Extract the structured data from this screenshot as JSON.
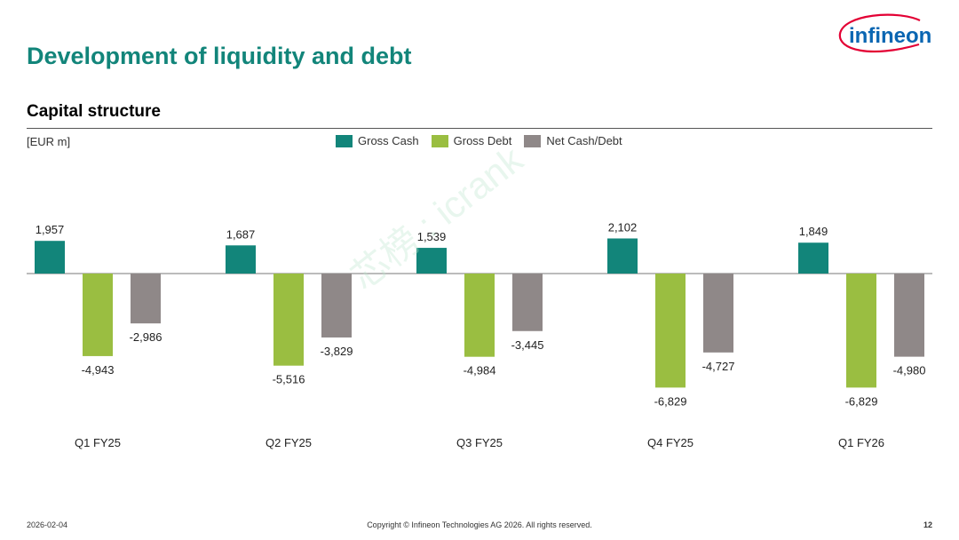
{
  "header": {
    "title": "Development of liquidity and debt",
    "logo_text": "infineon"
  },
  "section": {
    "subtitle": "Capital structure",
    "unit": "[EUR m]"
  },
  "watermark": "芯榜 : icrank",
  "colors": {
    "title": "#12857a",
    "gross_cash": "#12857a",
    "gross_debt": "#9abe41",
    "net_cash_debt": "#8f8888",
    "logo_blue": "#0a66b2",
    "logo_red": "#e30034"
  },
  "chart_data": {
    "type": "bar",
    "categories": [
      "Q1 FY25",
      "Q2 FY25",
      "Q3 FY25",
      "Q4 FY25",
      "Q1 FY26"
    ],
    "series": [
      {
        "name": "Gross Cash",
        "values": [
          1957,
          1687,
          1539,
          2102,
          1849
        ]
      },
      {
        "name": "Gross Debt",
        "values": [
          -4943,
          -5516,
          -4984,
          -6829,
          -6829
        ]
      },
      {
        "name": "Net Cash/Debt",
        "values": [
          -2986,
          -3829,
          -3445,
          -4727,
          -4980
        ]
      }
    ],
    "labels": [
      [
        "1,957",
        "-4,943",
        "-2,986"
      ],
      [
        "1,687",
        "-5,516",
        "-3,829"
      ],
      [
        "1,539",
        "-4,984",
        "-3,445"
      ],
      [
        "2,102",
        "-6,829",
        "-4,727"
      ],
      [
        "1,849",
        "-6,829",
        "-4,980"
      ]
    ],
    "ylabel": "[EUR m]",
    "legend_position": "top-center",
    "grid": false
  },
  "footer": {
    "date": "2026-02-04",
    "copyright": "Copyright © Infineon Technologies AG 2026. All rights reserved.",
    "page": "12"
  }
}
